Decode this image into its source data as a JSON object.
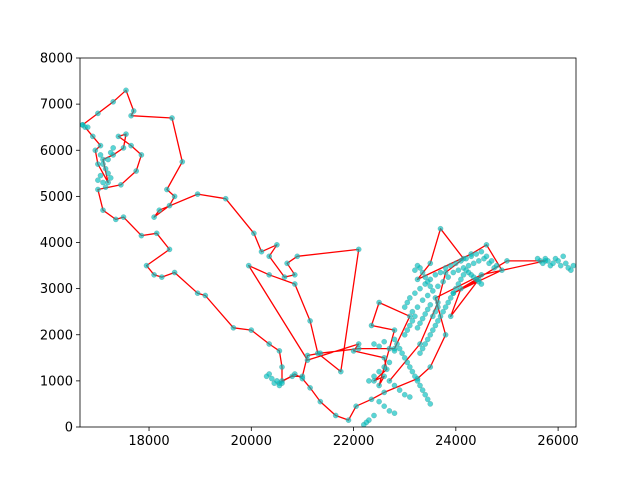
{
  "chart_data": {
    "type": "line",
    "title": "",
    "xlabel": "",
    "ylabel": "",
    "xlim": [
      16650,
      26350
    ],
    "ylim": [
      0,
      8000
    ],
    "x_ticks": [
      18000,
      20000,
      22000,
      24000,
      26000
    ],
    "x_tick_labels": [
      "18000",
      "20000",
      "22000",
      "24000",
      "26000"
    ],
    "y_ticks": [
      0,
      1000,
      2000,
      3000,
      4000,
      5000,
      6000,
      7000,
      8000
    ],
    "y_tick_labels": [
      "0",
      "1000",
      "2000",
      "3000",
      "4000",
      "5000",
      "6000",
      "7000",
      "8000"
    ],
    "grid": false,
    "legend": "none",
    "colors": {
      "route": "#ff0000",
      "points": "#00bfbf"
    },
    "series": [
      {
        "kind": "route-line",
        "points": [
          [
            16700,
            6550
          ],
          [
            17000,
            6800
          ],
          [
            17300,
            7050
          ],
          [
            17550,
            7300
          ],
          [
            17700,
            6850
          ],
          [
            17650,
            6750
          ],
          [
            18450,
            6700
          ],
          [
            18650,
            5750
          ],
          [
            18350,
            5150
          ],
          [
            18500,
            5000
          ],
          [
            18400,
            4800
          ],
          [
            18100,
            4550
          ],
          [
            18200,
            4700
          ],
          [
            18950,
            5050
          ],
          [
            19500,
            4950
          ],
          [
            20050,
            4200
          ],
          [
            20200,
            3800
          ],
          [
            20500,
            3950
          ],
          [
            20350,
            3700
          ],
          [
            20650,
            3250
          ],
          [
            20850,
            3300
          ],
          [
            20700,
            3550
          ],
          [
            20900,
            3700
          ],
          [
            22100,
            3850
          ],
          [
            21750,
            1200
          ],
          [
            21300,
            1600
          ],
          [
            21150,
            2300
          ],
          [
            20850,
            3100
          ],
          [
            20350,
            3300
          ],
          [
            19950,
            3500
          ],
          [
            21100,
            1450
          ],
          [
            22100,
            1800
          ],
          [
            22000,
            1650
          ],
          [
            22600,
            1500
          ],
          [
            22650,
            1250
          ],
          [
            22400,
            1000
          ],
          [
            22600,
            1100
          ],
          [
            22500,
            900
          ],
          [
            22800,
            2100
          ],
          [
            22350,
            2200
          ],
          [
            22500,
            2700
          ],
          [
            23100,
            2400
          ],
          [
            22800,
            1700
          ],
          [
            22100,
            1700
          ],
          [
            21350,
            1600
          ],
          [
            21100,
            1550
          ],
          [
            21000,
            1100
          ],
          [
            20800,
            1100
          ],
          [
            20600,
            1000
          ],
          [
            20600,
            1300
          ],
          [
            20550,
            1650
          ],
          [
            20350,
            1800
          ],
          [
            20000,
            2100
          ],
          [
            19650,
            2150
          ],
          [
            19100,
            2850
          ],
          [
            18950,
            2900
          ],
          [
            18500,
            3350
          ],
          [
            18250,
            3250
          ],
          [
            18100,
            3300
          ],
          [
            17950,
            3500
          ],
          [
            18400,
            3850
          ],
          [
            18150,
            4200
          ],
          [
            17850,
            4150
          ],
          [
            17500,
            4550
          ],
          [
            17350,
            4500
          ],
          [
            17100,
            4700
          ],
          [
            17000,
            5150
          ],
          [
            17450,
            5250
          ],
          [
            17750,
            5550
          ],
          [
            17850,
            5900
          ],
          [
            17650,
            6100
          ],
          [
            17400,
            6300
          ],
          [
            17550,
            6350
          ],
          [
            17500,
            6050
          ],
          [
            17300,
            5900
          ],
          [
            17100,
            5800
          ],
          [
            17200,
            5300
          ],
          [
            17000,
            5700
          ],
          [
            16950,
            6000
          ],
          [
            17050,
            6100
          ],
          [
            16900,
            6300
          ],
          [
            16750,
            6500
          ]
        ]
      },
      {
        "kind": "route-line",
        "points": [
          [
            22700,
            1000
          ],
          [
            23300,
            1800
          ],
          [
            23650,
            2700
          ],
          [
            23800,
            3350
          ],
          [
            24150,
            3650
          ],
          [
            23700,
            4300
          ],
          [
            23500,
            3550
          ],
          [
            23250,
            3200
          ],
          [
            24300,
            3750
          ],
          [
            24600,
            3950
          ],
          [
            24900,
            3400
          ],
          [
            23950,
            2900
          ],
          [
            24450,
            3200
          ],
          [
            23900,
            2400
          ],
          [
            24100,
            3000
          ],
          [
            25000,
            3600
          ],
          [
            25750,
            3600
          ],
          [
            24500,
            3300
          ],
          [
            23600,
            2800
          ],
          [
            23800,
            2000
          ],
          [
            23500,
            1300
          ],
          [
            23250,
            1050
          ],
          [
            22600,
            750
          ],
          [
            22350,
            600
          ],
          [
            22050,
            450
          ],
          [
            21900,
            150
          ],
          [
            21650,
            250
          ],
          [
            21350,
            550
          ],
          [
            21150,
            850
          ],
          [
            21000,
            1050
          ],
          [
            20850,
            1150
          ],
          [
            20550,
            950
          ]
        ]
      },
      {
        "kind": "point-cluster",
        "points": [
          [
            23000,
            2600
          ],
          [
            23050,
            2700
          ],
          [
            23100,
            2800
          ],
          [
            23150,
            2500
          ],
          [
            23200,
            2900
          ],
          [
            23250,
            2600
          ],
          [
            23300,
            3000
          ],
          [
            23350,
            2750
          ],
          [
            23400,
            3100
          ],
          [
            23450,
            2850
          ],
          [
            23500,
            3200
          ],
          [
            23550,
            2950
          ],
          [
            23600,
            3300
          ],
          [
            23650,
            3050
          ],
          [
            23700,
            3350
          ],
          [
            23750,
            3150
          ],
          [
            23800,
            3450
          ],
          [
            23850,
            3250
          ],
          [
            23900,
            3500
          ],
          [
            23950,
            3350
          ],
          [
            24000,
            3550
          ],
          [
            24050,
            3400
          ],
          [
            24100,
            3600
          ],
          [
            24150,
            3450
          ],
          [
            24200,
            3650
          ],
          [
            24250,
            3500
          ],
          [
            24300,
            3700
          ],
          [
            24350,
            3550
          ],
          [
            24400,
            3750
          ],
          [
            24450,
            3600
          ],
          [
            24500,
            3800
          ],
          [
            24550,
            3650
          ],
          [
            24600,
            3700
          ],
          [
            24650,
            3550
          ],
          [
            24700,
            3600
          ],
          [
            24750,
            3450
          ],
          [
            24800,
            3500
          ],
          [
            23000,
            2000
          ],
          [
            23050,
            2100
          ],
          [
            23100,
            2200
          ],
          [
            23150,
            2300
          ],
          [
            23200,
            2400
          ],
          [
            23250,
            2150
          ],
          [
            23300,
            2250
          ],
          [
            23350,
            2350
          ],
          [
            23400,
            2450
          ],
          [
            23450,
            2550
          ],
          [
            23500,
            2650
          ],
          [
            23550,
            2400
          ],
          [
            23600,
            2500
          ],
          [
            23650,
            2600
          ],
          [
            22900,
            1700
          ],
          [
            22850,
            1800
          ],
          [
            22800,
            1900
          ],
          [
            22950,
            1600
          ],
          [
            23000,
            1500
          ],
          [
            23050,
            1400
          ],
          [
            23100,
            1300
          ],
          [
            23150,
            1200
          ],
          [
            23200,
            1100
          ],
          [
            23250,
            1000
          ],
          [
            23300,
            900
          ],
          [
            23350,
            800
          ],
          [
            23400,
            700
          ],
          [
            23450,
            600
          ],
          [
            23500,
            500
          ],
          [
            22400,
            1800
          ],
          [
            22500,
            1750
          ],
          [
            22600,
            1850
          ],
          [
            22700,
            1700
          ],
          [
            22800,
            1650
          ],
          [
            22700,
            1400
          ],
          [
            22600,
            1300
          ],
          [
            22500,
            1200
          ],
          [
            22400,
            1100
          ],
          [
            22300,
            1000
          ],
          [
            22800,
            900
          ],
          [
            22900,
            800
          ],
          [
            23000,
            700
          ],
          [
            23100,
            650
          ],
          [
            22500,
            550
          ],
          [
            22600,
            450
          ],
          [
            22700,
            350
          ],
          [
            22800,
            300
          ],
          [
            22400,
            250
          ],
          [
            22300,
            150
          ],
          [
            22200,
            50
          ],
          [
            22250,
            100
          ],
          [
            25700,
            3550
          ],
          [
            25750,
            3650
          ],
          [
            25800,
            3600
          ],
          [
            25850,
            3500
          ],
          [
            25900,
            3550
          ],
          [
            25950,
            3650
          ],
          [
            26000,
            3600
          ],
          [
            26050,
            3500
          ],
          [
            26100,
            3700
          ],
          [
            26150,
            3550
          ],
          [
            26200,
            3450
          ],
          [
            26250,
            3400
          ],
          [
            26300,
            3500
          ],
          [
            25650,
            3600
          ],
          [
            25600,
            3650
          ],
          [
            20350,
            1150
          ],
          [
            20400,
            1050
          ],
          [
            20450,
            950
          ],
          [
            20500,
            1000
          ],
          [
            20550,
            900
          ],
          [
            20600,
            950
          ],
          [
            20300,
            1100
          ],
          [
            17050,
            5900
          ],
          [
            17100,
            5700
          ],
          [
            17150,
            5600
          ],
          [
            17200,
            5500
          ],
          [
            17250,
            5400
          ],
          [
            17100,
            5300
          ],
          [
            17150,
            5200
          ],
          [
            17200,
            5800
          ],
          [
            17250,
            5950
          ],
          [
            17300,
            6050
          ],
          [
            17050,
            5450
          ],
          [
            17000,
            5350
          ],
          [
            16800,
            6500
          ],
          [
            16700,
            6550
          ],
          [
            23300,
            1600
          ],
          [
            23350,
            1700
          ],
          [
            23400,
            1800
          ],
          [
            23450,
            1900
          ],
          [
            23500,
            2000
          ],
          [
            23550,
            2100
          ],
          [
            23600,
            2200
          ],
          [
            23650,
            2300
          ],
          [
            23700,
            2400
          ],
          [
            23750,
            2500
          ],
          [
            23800,
            2600
          ],
          [
            23850,
            2700
          ],
          [
            23900,
            2800
          ],
          [
            23950,
            2900
          ],
          [
            24000,
            3000
          ],
          [
            24050,
            3100
          ],
          [
            24100,
            3200
          ],
          [
            24150,
            3300
          ],
          [
            24200,
            3400
          ],
          [
            24250,
            3350
          ],
          [
            24300,
            3300
          ],
          [
            24350,
            3250
          ],
          [
            24400,
            3200
          ],
          [
            24450,
            3150
          ],
          [
            24500,
            3100
          ],
          [
            23200,
            3400
          ],
          [
            23250,
            3500
          ],
          [
            23300,
            3450
          ],
          [
            23350,
            3350
          ],
          [
            23400,
            3250
          ],
          [
            23450,
            3150
          ],
          [
            23500,
            3050
          ]
        ]
      }
    ]
  }
}
